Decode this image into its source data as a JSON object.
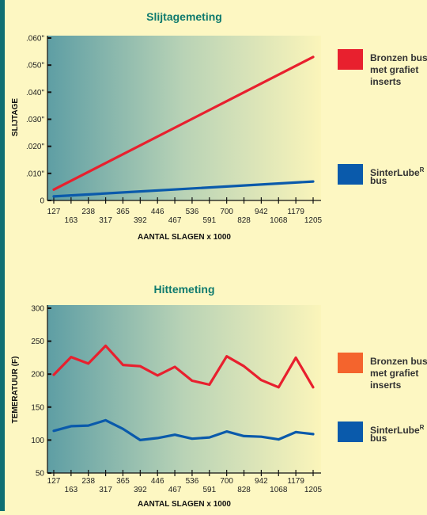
{
  "charts": [
    {
      "chart_data": {
        "type": "line",
        "title": "Slijtagemeting",
        "xlabel": "AANTAL SLAGEN x 1000",
        "ylabel": "SLIJTAGE",
        "x_ticks_upper": [
          "127",
          "238",
          "365",
          "446",
          "536",
          "700",
          "942",
          "1179"
        ],
        "x_ticks_lower": [
          "163",
          "317",
          "392",
          "467",
          "591",
          "828",
          "1068",
          "1205"
        ],
        "y_tick_labels": [
          ".060\"",
          ".050\"",
          ".040\"",
          ".030\"",
          ".020\"",
          ".010\"",
          "0"
        ],
        "y_tick_values": [
          0.06,
          0.05,
          0.04,
          0.03,
          0.02,
          0.01,
          0
        ],
        "ylim": [
          0,
          0.06
        ],
        "x_index_range": [
          0,
          15
        ],
        "grid": false,
        "legend_position": "right",
        "series": [
          {
            "name": "Bronzen bus met grafiet inserts",
            "color": "#e8202e",
            "x_index": [
              0,
              15
            ],
            "values": [
              0.004,
              0.053
            ]
          },
          {
            "name": "SinterLubeR bus",
            "color": "#0a5aab",
            "x_index": [
              0,
              15
            ],
            "values": [
              0.0015,
              0.007
            ]
          }
        ]
      },
      "legend": [
        {
          "lines": [
            "Bronzen bus",
            "met grafiet",
            "inserts"
          ],
          "color": "#e8202e"
        },
        {
          "lines": [
            "SinterLubeR",
            "bus"
          ],
          "color": "#0a5aab"
        }
      ]
    },
    {
      "chart_data": {
        "type": "line",
        "title": "Hittemeting",
        "xlabel": "AANTAL SLAGEN x 1000",
        "ylabel": "TEMERATUUR (F)",
        "x_ticks_upper": [
          "127",
          "238",
          "365",
          "446",
          "536",
          "700",
          "942",
          "1179"
        ],
        "x_ticks_lower": [
          "163",
          "317",
          "392",
          "467",
          "591",
          "828",
          "1068",
          "1205"
        ],
        "y_tick_labels": [
          "300",
          "250",
          "200",
          "150",
          "100",
          "50"
        ],
        "y_tick_values": [
          300,
          250,
          200,
          150,
          100,
          50
        ],
        "ylim": [
          50,
          300
        ],
        "x_index_range": [
          0,
          15
        ],
        "grid": false,
        "legend_position": "right",
        "series": [
          {
            "name": "Bronzen bus met grafiet inserts",
            "color": "#e8202e",
            "x_index": [
              0,
              1,
              2,
              3,
              4,
              5,
              6,
              7,
              8,
              9,
              10,
              11,
              12,
              13,
              14,
              15
            ],
            "values": [
              199,
              226,
              216,
              243,
              214,
              212,
              198,
              211,
              190,
              184,
              227,
              212,
              191,
              180,
              225,
              180
            ]
          },
          {
            "name": "SinterLubeR bus",
            "color": "#0a5aab",
            "x_index": [
              0,
              1,
              2,
              3,
              4,
              5,
              6,
              7,
              8,
              9,
              10,
              11,
              12,
              13,
              14,
              15
            ],
            "values": [
              114,
              121,
              122,
              130,
              117,
              100,
              103,
              108,
              102,
              104,
              113,
              106,
              105,
              101,
              112,
              109
            ]
          }
        ]
      },
      "legend": [
        {
          "lines": [
            "Bronzen bus",
            "met grafiet",
            "inserts"
          ],
          "color": "#f4642d"
        },
        {
          "lines": [
            "SinterLubeR",
            "bus"
          ],
          "color": "#0a5aab"
        }
      ]
    }
  ]
}
